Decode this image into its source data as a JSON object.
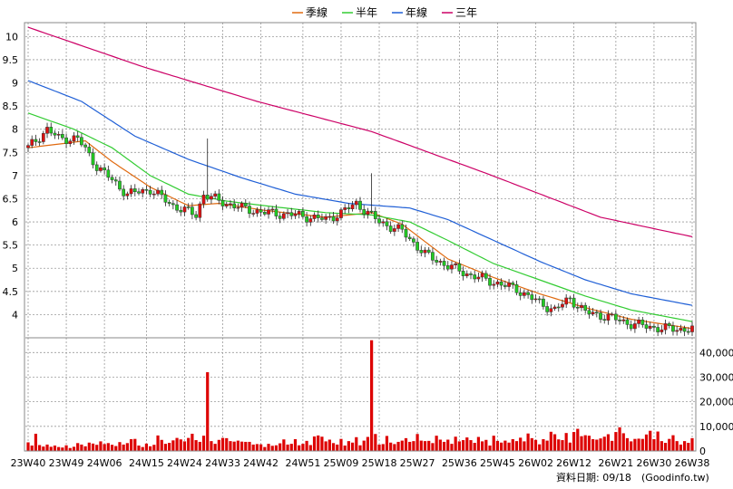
{
  "chart_data": [
    {
      "type": "candlestick",
      "legend_position": "top-center",
      "series": [
        {
          "name": "季線",
          "color": "#e06a10"
        },
        {
          "name": "半年",
          "color": "#33cc33"
        },
        {
          "name": "年線",
          "color": "#1f5fd6"
        },
        {
          "name": "三年",
          "color": "#cc0066"
        }
      ],
      "y_ticks": [
        "10",
        "9.5",
        "9",
        "8.5",
        "8",
        "7.5",
        "7",
        "6.5",
        "6",
        "5.5",
        "5",
        "4.5",
        "4"
      ],
      "ylim": [
        3.5,
        10.3
      ],
      "grid": true,
      "price_start": 7.6,
      "price_anchors": [
        [
          0,
          7.6
        ],
        [
          5,
          8.0
        ],
        [
          8,
          7.8
        ],
        [
          13,
          7.8
        ],
        [
          18,
          7.2
        ],
        [
          22,
          6.9
        ],
        [
          26,
          6.6
        ],
        [
          32,
          6.7
        ],
        [
          38,
          6.35
        ],
        [
          44,
          6.15
        ],
        [
          46,
          6.6
        ],
        [
          50,
          6.45
        ],
        [
          56,
          6.3
        ],
        [
          62,
          6.2
        ],
        [
          70,
          6.15
        ],
        [
          78,
          6.05
        ],
        [
          82,
          6.2
        ],
        [
          86,
          6.4
        ],
        [
          92,
          6.0
        ],
        [
          98,
          5.8
        ],
        [
          104,
          5.3
        ],
        [
          110,
          5.05
        ],
        [
          116,
          4.85
        ],
        [
          122,
          4.7
        ],
        [
          128,
          4.55
        ],
        [
          134,
          4.25
        ],
        [
          138,
          4.1
        ],
        [
          142,
          4.35
        ],
        [
          146,
          4.05
        ],
        [
          152,
          3.95
        ],
        [
          158,
          3.8
        ],
        [
          166,
          3.7
        ],
        [
          174,
          3.68
        ]
      ],
      "price_spikes": [
        {
          "week": 47,
          "high": 7.8
        },
        {
          "week": 90,
          "high": 7.05
        }
      ],
      "ma_quarter": [
        [
          0,
          7.6
        ],
        [
          15,
          7.75
        ],
        [
          22,
          7.3
        ],
        [
          32,
          6.75
        ],
        [
          42,
          6.35
        ],
        [
          50,
          6.4
        ],
        [
          62,
          6.25
        ],
        [
          78,
          6.1
        ],
        [
          90,
          6.2
        ],
        [
          98,
          5.95
        ],
        [
          110,
          5.2
        ],
        [
          122,
          4.8
        ],
        [
          134,
          4.45
        ],
        [
          146,
          4.15
        ],
        [
          158,
          3.9
        ],
        [
          174,
          3.7
        ]
      ],
      "ma_halfyear": [
        [
          0,
          8.35
        ],
        [
          12,
          8.0
        ],
        [
          22,
          7.6
        ],
        [
          32,
          7.0
        ],
        [
          42,
          6.6
        ],
        [
          52,
          6.45
        ],
        [
          62,
          6.35
        ],
        [
          78,
          6.2
        ],
        [
          90,
          6.15
        ],
        [
          100,
          6.0
        ],
        [
          110,
          5.6
        ],
        [
          122,
          5.1
        ],
        [
          134,
          4.75
        ],
        [
          146,
          4.4
        ],
        [
          158,
          4.1
        ],
        [
          174,
          3.85
        ]
      ],
      "ma_year": [
        [
          0,
          9.05
        ],
        [
          14,
          8.6
        ],
        [
          28,
          7.85
        ],
        [
          42,
          7.35
        ],
        [
          56,
          6.95
        ],
        [
          70,
          6.6
        ],
        [
          84,
          6.4
        ],
        [
          100,
          6.3
        ],
        [
          110,
          6.05
        ],
        [
          122,
          5.6
        ],
        [
          134,
          5.15
        ],
        [
          146,
          4.75
        ],
        [
          158,
          4.45
        ],
        [
          174,
          4.2
        ]
      ],
      "ma_3year": [
        [
          0,
          10.2
        ],
        [
          30,
          9.35
        ],
        [
          60,
          8.6
        ],
        [
          90,
          7.95
        ],
        [
          120,
          7.05
        ],
        [
          150,
          6.1
        ],
        [
          174,
          5.68
        ]
      ]
    },
    {
      "type": "bar",
      "y_ticks": [
        "40,000",
        "30,000",
        "20,000",
        "10,000",
        "0"
      ],
      "ylim": [
        0,
        46000
      ],
      "color": "#dd0000",
      "weeks": 175,
      "base_volumes": [
        3500,
        2200,
        7000,
        2400,
        1800,
        2600,
        1700,
        2200,
        1600,
        1400,
        2300,
        1200,
        1700,
        3200,
        2600,
        1900,
        3400,
        3000,
        2500,
        3900,
        2800,
        3200,
        2500,
        2000,
        3600,
        2600,
        3200,
        4800,
        4900,
        2200,
        1600,
        3000,
        1900,
        2500,
        6300,
        4500,
        2900,
        3300,
        4300,
        5300,
        4700,
        3900,
        5300,
        7000,
        4400,
        3700,
        6200,
        3700,
        4000,
        2900,
        4500,
        5300,
        5200,
        4000,
        3800,
        4200,
        3800,
        3700,
        3700,
        2600,
        2800,
        2700,
        1600,
        2900,
        2100,
        2300,
        3100,
        4700,
        2600,
        2900,
        4800,
        2300,
        2900,
        4100,
        2400,
        5900,
        6300,
        5800,
        3900,
        4600,
        3200,
        2600,
        4900,
        2200,
        4000,
        3400,
        5600,
        2300,
        4200,
        5700,
        2800,
        6900,
        2600,
        2800,
        6100,
        3400,
        2800,
        3700,
        4200,
        5200,
        3700,
        4000,
        6900,
        4200,
        4000,
        4100,
        3200,
        6200,
        4600,
        3700,
        4600,
        2900,
        5800,
        3900,
        4400,
        5500,
        4400,
        3300,
        5700,
        3900,
        4500,
        2200,
        6200,
        4100,
        3400,
        4200,
        3400,
        4800,
        4000,
        5400,
        3900,
        7100,
        5200,
        4500,
        2700,
        4800,
        4200,
        7800,
        6800,
        4700,
        4400,
        7300,
        3400,
        7700,
        9000,
        6000,
        6400,
        6200,
        4800,
        4600,
        5100,
        5800,
        6800,
        4100,
        7700,
        9600,
        7200,
        5200,
        3900,
        4900,
        5000,
        4900,
        6700,
        8200,
        4800,
        7900,
        4000,
        3300,
        4900,
        6400,
        4000,
        2600,
        4000,
        3300,
        5200
      ],
      "spikes": [
        {
          "week": 47,
          "value": 32000
        },
        {
          "week": 90,
          "value": 45000
        }
      ],
      "x_tick_labels": [
        "23W40",
        "23W49",
        "24W06",
        "24W15",
        "24W24",
        "24W33",
        "24W42",
        "24W51",
        "25W09",
        "25W18",
        "25W27",
        "25W36",
        "25W45",
        "26W02",
        "26W12",
        "26W21",
        "26W30",
        "26W38"
      ]
    }
  ],
  "footer": {
    "date_label": "資料日期: 09/18",
    "source": "(Goodinfo.tw)"
  }
}
